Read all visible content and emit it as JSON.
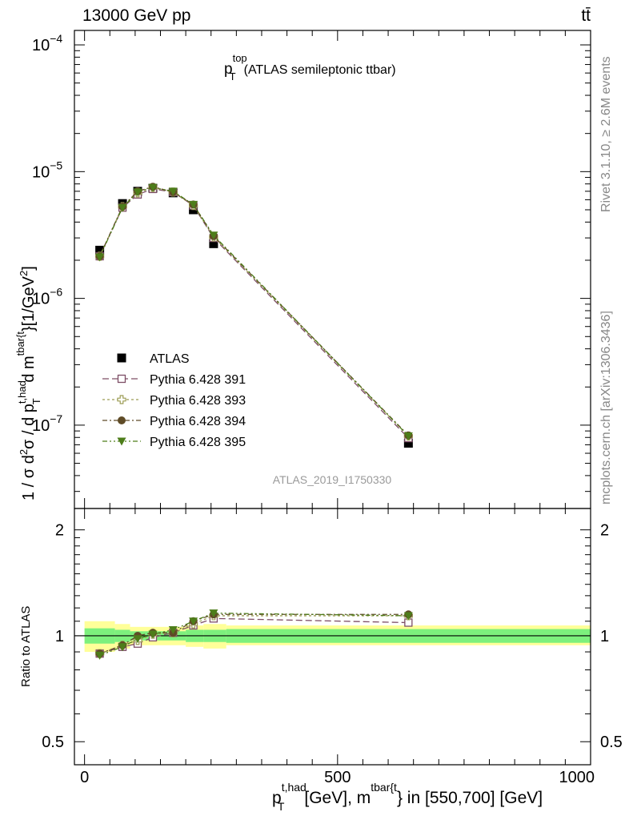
{
  "header": {
    "left": "13000 GeV pp",
    "right": "tt̄",
    "side_top": "Rivet 3.1.10, ≥ 2.6M events",
    "side_bottom": "mcplots.cern.ch [arXiv:1306.3436]",
    "watermark": "ATLAS_2019_I1750330"
  },
  "colors": {
    "atlas": "#000000",
    "p391": "#7d4e66",
    "p393": "#9c9c55",
    "p394": "#5f4b27",
    "p395": "#4d7d1a",
    "band_inner": "#7df07d",
    "band_outer": "#ffff99"
  },
  "chart_data": [
    {
      "type": "scatter",
      "title_main": "p",
      "title_sup": "top",
      "title_sub": "T",
      "title_rest": "(ATLAS semileptonic ttbar)",
      "ylabel": "1 / σ d²σ / d p_T^{t,had} d m^{tbar{t}} [1/GeV²]",
      "yscale": "log",
      "ylim": [
        2.2e-08,
        0.00013
      ],
      "xlim": [
        -20,
        1000
      ],
      "ytick_labels": [
        {
          "value": 1e-07,
          "base": "10",
          "exp": "−7"
        },
        {
          "value": 1e-06,
          "base": "10",
          "exp": "−6"
        },
        {
          "value": 1e-05,
          "base": "10",
          "exp": "−5"
        },
        {
          "value": 0.0001,
          "base": "10",
          "exp": "−4"
        }
      ],
      "x": [
        30,
        75,
        105,
        135,
        175,
        215,
        255,
        640
      ],
      "series": [
        {
          "name": "ATLAS",
          "marker": "square",
          "values": [
            2.4e-06,
            5.6e-06,
            7e-06,
            7.4e-06,
            6.8e-06,
            5e-06,
            2.7e-06,
            7.2e-08
          ]
        },
        {
          "name": "Pythia 6.428 391",
          "marker": "open-square",
          "values": [
            2.15e-06,
            5.2e-06,
            6.6e-06,
            7.3e-06,
            6.9e-06,
            5.4e-06,
            3e-06,
            7.9e-08
          ]
        },
        {
          "name": "Pythia 6.428 393",
          "marker": "open-cross",
          "values": [
            2.15e-06,
            5.3e-06,
            6.8e-06,
            7.5e-06,
            6.9e-06,
            5.4e-06,
            3.05e-06,
            8.2e-08
          ]
        },
        {
          "name": "Pythia 6.428 394",
          "marker": "circle",
          "values": [
            2.15e-06,
            5.3e-06,
            7e-06,
            7.6e-06,
            6.9e-06,
            5.5e-06,
            3.1e-06,
            8.3e-08
          ]
        },
        {
          "name": "Pythia 6.428 395",
          "marker": "triangle-down",
          "values": [
            2.12e-06,
            5.2e-06,
            6.9e-06,
            7.5e-06,
            7e-06,
            5.5e-06,
            3.15e-06,
            8.2e-08
          ]
        }
      ]
    },
    {
      "type": "line",
      "ylabel": "Ratio to ATLAS",
      "yscale": "log",
      "ylim": [
        0.43,
        2.3
      ],
      "xlim": [
        -20,
        1000
      ],
      "ytick_labels": [
        {
          "value": 0.5,
          "label": "0.5"
        },
        {
          "value": 1,
          "label": "1"
        },
        {
          "value": 2,
          "label": "2"
        }
      ],
      "xtick_labels": [
        {
          "value": 0,
          "label": "0"
        },
        {
          "value": 500,
          "label": "500"
        },
        {
          "value": 1000,
          "label": "1000"
        }
      ],
      "xlabel_main": "p",
      "xlabel_sup1": "t,had",
      "xlabel_sub1": "T",
      "xlabel_mid": "[GeV], m",
      "xlabel_sup2": "tbar{t",
      "xlabel_rest": "} in [550,700] [GeV]",
      "band_edges": [
        0,
        60,
        90,
        120,
        150,
        200,
        235,
        280,
        1000
      ],
      "band_inner_lo": [
        0.95,
        0.96,
        0.97,
        0.97,
        0.97,
        0.96,
        0.96,
        0.955
      ],
      "band_inner_hi": [
        1.05,
        1.04,
        1.03,
        1.03,
        1.03,
        1.04,
        1.04,
        1.045
      ],
      "band_outer_lo": [
        0.9,
        0.92,
        0.94,
        0.94,
        0.94,
        0.93,
        0.92,
        0.94
      ],
      "band_outer_hi": [
        1.1,
        1.08,
        1.06,
        1.06,
        1.06,
        1.07,
        1.08,
        1.07
      ],
      "x": [
        30,
        75,
        105,
        135,
        175,
        215,
        255,
        640
      ],
      "series": [
        {
          "name": "Pythia 6.428 391",
          "values": [
            0.89,
            0.93,
            0.95,
            0.99,
            1.02,
            1.07,
            1.12,
            1.09
          ]
        },
        {
          "name": "Pythia 6.428 393",
          "values": [
            0.89,
            0.94,
            0.97,
            1.01,
            1.02,
            1.08,
            1.14,
            1.14
          ]
        },
        {
          "name": "Pythia 6.428 394",
          "values": [
            0.89,
            0.94,
            1.0,
            1.02,
            1.02,
            1.1,
            1.15,
            1.15
          ]
        },
        {
          "name": "Pythia 6.428 395",
          "values": [
            0.88,
            0.93,
            0.98,
            1.01,
            1.04,
            1.1,
            1.16,
            1.14
          ]
        }
      ]
    }
  ]
}
